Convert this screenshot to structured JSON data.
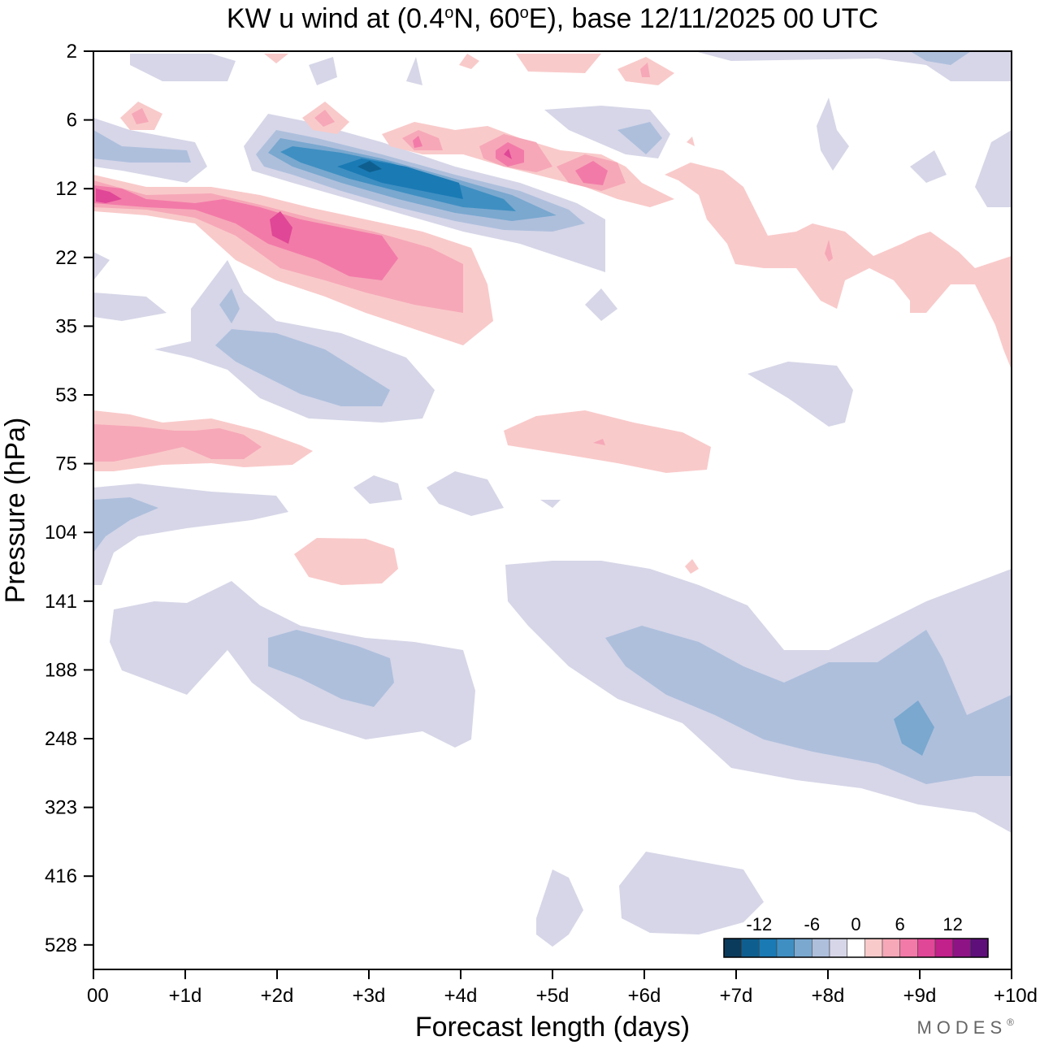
{
  "chart_data": {
    "type": "contour",
    "title_parts": {
      "prefix": "KW u wind at (0.4",
      "deg1": "o",
      "mid": "N, 60",
      "deg2": "o",
      "suffix": "E),  base 12/11/2025  00 UTC"
    },
    "title": "KW u wind at (0.4°N, 60°E),  base 12/11/2025  00 UTC",
    "xlabel": "Forecast length (days)",
    "ylabel": "Pressure (hPa)",
    "x_ticks": [
      "00",
      "+1d",
      "+2d",
      "+3d",
      "+4d",
      "+5d",
      "+6d",
      "+7d",
      "+8d",
      "+9d",
      "+10d"
    ],
    "xlim_days": [
      0,
      10
    ],
    "y_ticks": [
      "2",
      "6",
      "12",
      "22",
      "35",
      "53",
      "75",
      "104",
      "141",
      "188",
      "248",
      "323",
      "416",
      "528"
    ],
    "yscale": "log-pressure",
    "units": "m/s",
    "colorbar": {
      "ticks": [
        "-12",
        "-6",
        "0",
        "6",
        "12"
      ],
      "levels": [
        -14,
        -12,
        -10,
        -8,
        -6,
        -4,
        -2,
        2,
        4,
        6,
        8,
        10,
        12,
        14
      ],
      "colors": [
        "#0b3b5c",
        "#0e5f8f",
        "#1a7ab4",
        "#3f8fc2",
        "#7aa8cf",
        "#aebfdc",
        "#d6d6e8",
        "#ffffff",
        "#f9caca",
        "#f6a8b8",
        "#f27aa8",
        "#e04796",
        "#c2208a",
        "#8e1385",
        "#5e0f7a"
      ]
    },
    "features": [
      {
        "name": "neg-upper-jet",
        "day_start": 1.7,
        "day_end": 5.4,
        "p_top": 7,
        "p_bottom": 17,
        "min_value": -13
      },
      {
        "name": "pos-upper-jet",
        "day_start": 0,
        "day_end": 4.4,
        "p_top": 11,
        "p_bottom": 35,
        "max_value": 10
      },
      {
        "name": "neg-35-53",
        "day_start": 1.3,
        "day_end": 3.7,
        "p_top": 28,
        "p_bottom": 60,
        "min_value": -5
      },
      {
        "name": "pos-65-80",
        "day_start": 0,
        "day_end": 2.4,
        "p_top": 62,
        "p_bottom": 80,
        "max_value": 6
      },
      {
        "name": "pos-right-22",
        "day_start": 6.4,
        "day_end": 10,
        "p_top": 10,
        "p_bottom": 45,
        "max_value": 4
      },
      {
        "name": "neg-150-250",
        "day_start": 0.2,
        "day_end": 4.1,
        "p_top": 130,
        "p_bottom": 260,
        "min_value": -4
      },
      {
        "name": "neg-lower-right",
        "day_start": 4.5,
        "day_end": 10,
        "p_top": 125,
        "p_bottom": 350,
        "min_value": -6
      }
    ]
  },
  "brand": "MODES",
  "brand_mark": "®"
}
